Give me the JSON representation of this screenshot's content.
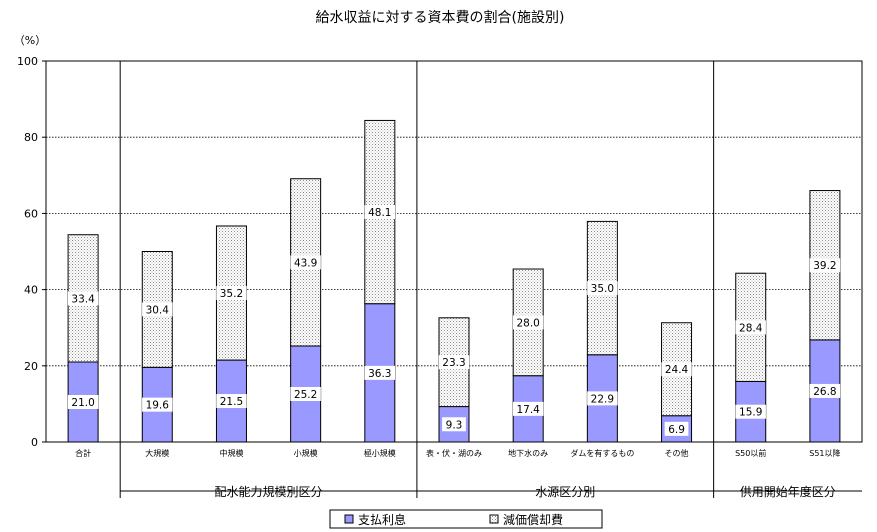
{
  "chart_data": {
    "type": "bar",
    "stacked": true,
    "title": "給水収益に対する資本費の割合(施設別)",
    "ylabel": "（%）",
    "ylim": [
      0,
      100
    ],
    "yticks": [
      0,
      20,
      40,
      60,
      80,
      100
    ],
    "grid": true,
    "legend_position": "bottom",
    "categories": [
      "合計",
      "大規模",
      "中規模",
      "小規模",
      "極小規模",
      "表・伏・湖のみ",
      "地下水のみ",
      "ダムを有するもの",
      "その他",
      "S50以前",
      "S51以降"
    ],
    "groups": [
      {
        "label": "配水能力規模別区分",
        "start": 1,
        "end": 4
      },
      {
        "label": "水源区分別",
        "start": 5,
        "end": 8
      },
      {
        "label": "供用開始年度区分",
        "start": 9,
        "end": 10
      }
    ],
    "series": [
      {
        "name": "支払利息",
        "color": "#9999ff",
        "values": [
          21.0,
          19.6,
          21.5,
          25.2,
          36.3,
          9.3,
          17.4,
          22.9,
          6.9,
          15.9,
          26.8
        ],
        "labels": [
          "21.0",
          "19.6",
          "21.5",
          "25.2",
          "36.3",
          "9.3",
          "17.4",
          "22.9",
          "6.9",
          "15.9",
          "26.8"
        ]
      },
      {
        "name": "減価償却費",
        "pattern": "crosshatch",
        "values": [
          33.4,
          30.4,
          35.2,
          43.9,
          48.1,
          23.3,
          28.0,
          35.0,
          24.4,
          28.4,
          39.2
        ],
        "labels": [
          "33.4",
          "30.4",
          "35.2",
          "43.9",
          "48.1",
          "23.3",
          "28.0",
          "35.0",
          "24.4",
          "28.4",
          "39.2"
        ]
      }
    ]
  }
}
